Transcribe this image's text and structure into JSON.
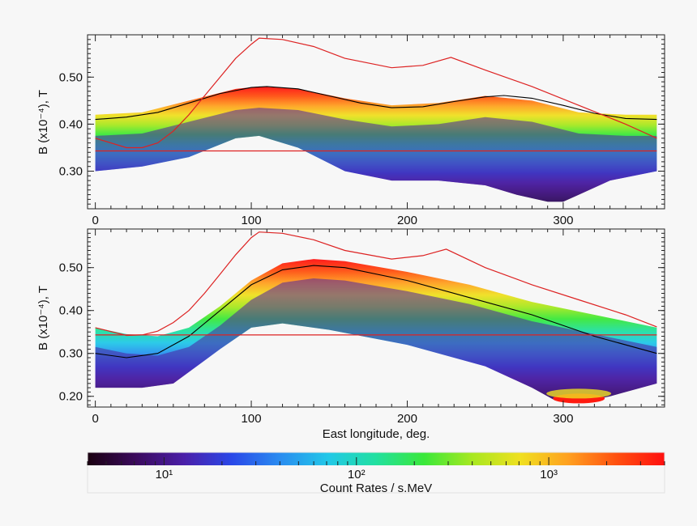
{
  "chart_data": [
    {
      "type": "heatmap",
      "panel": "top",
      "ylabel": "B (x10⁻⁴), T",
      "xlim": [
        -5,
        365
      ],
      "ylim": [
        0.22,
        0.59
      ],
      "xticks": [
        0,
        100,
        200,
        300
      ],
      "xtick_labels": [
        "0",
        "100",
        "200",
        "300"
      ],
      "yticks": [
        0.3,
        0.4,
        0.5
      ],
      "ytick_labels": [
        "0.30",
        "0.40",
        "0.50"
      ],
      "band_upper": {
        "x": [
          0,
          30,
          60,
          90,
          105,
          130,
          160,
          190,
          220,
          250,
          280,
          310,
          340,
          360
        ],
        "y": [
          0.42,
          0.425,
          0.45,
          0.475,
          0.48,
          0.475,
          0.455,
          0.44,
          0.445,
          0.46,
          0.45,
          0.425,
          0.42,
          0.42
        ]
      },
      "band_lower": {
        "x": [
          0,
          30,
          60,
          90,
          105,
          130,
          160,
          190,
          220,
          250,
          270,
          290,
          300,
          310,
          330,
          360
        ],
        "y": [
          0.3,
          0.31,
          0.33,
          0.37,
          0.375,
          0.35,
          0.3,
          0.28,
          0.28,
          0.27,
          0.25,
          0.235,
          0.235,
          0.25,
          0.28,
          0.3
        ]
      },
      "series": [
        {
          "name": "black-curve",
          "color": "#000000",
          "x": [
            0,
            20,
            40,
            60,
            80,
            100,
            110,
            130,
            150,
            170,
            190,
            210,
            230,
            250,
            262,
            280,
            300,
            320,
            340,
            360
          ],
          "y": [
            0.41,
            0.415,
            0.425,
            0.445,
            0.465,
            0.478,
            0.48,
            0.475,
            0.46,
            0.445,
            0.435,
            0.437,
            0.448,
            0.458,
            0.461,
            0.455,
            0.44,
            0.423,
            0.412,
            0.41
          ]
        },
        {
          "name": "red-upper-curve",
          "color": "#dd2222",
          "x": [
            0,
            20,
            30,
            40,
            50,
            60,
            70,
            80,
            90,
            100,
            105,
            120,
            140,
            160,
            190,
            210,
            228,
            250,
            280,
            310,
            340,
            360
          ],
          "y": [
            0.37,
            0.35,
            0.35,
            0.36,
            0.385,
            0.42,
            0.46,
            0.5,
            0.54,
            0.57,
            0.583,
            0.58,
            0.565,
            0.54,
            0.52,
            0.525,
            0.542,
            0.515,
            0.48,
            0.44,
            0.4,
            0.37
          ]
        },
        {
          "name": "red-flat-line",
          "color": "#dd2222",
          "x": [
            0,
            360
          ],
          "y": [
            0.343,
            0.343
          ]
        }
      ]
    },
    {
      "type": "heatmap",
      "panel": "bottom",
      "ylabel": "B (x10⁻⁴), T",
      "xlabel": "East longitude, deg.",
      "xlim": [
        -5,
        365
      ],
      "ylim": [
        0.175,
        0.59
      ],
      "xticks": [
        0,
        100,
        200,
        300
      ],
      "xtick_labels": [
        "0",
        "100",
        "200",
        "300"
      ],
      "yticks": [
        0.2,
        0.3,
        0.4,
        0.5
      ],
      "ytick_labels": [
        "0.20",
        "0.30",
        "0.40",
        "0.50"
      ],
      "band_upper": {
        "x": [
          0,
          20,
          40,
          60,
          80,
          100,
          120,
          140,
          160,
          200,
          240,
          280,
          320,
          360
        ],
        "y": [
          0.36,
          0.345,
          0.34,
          0.36,
          0.41,
          0.47,
          0.51,
          0.52,
          0.515,
          0.49,
          0.46,
          0.42,
          0.39,
          0.36
        ]
      },
      "band_lower": {
        "x": [
          0,
          30,
          50,
          80,
          100,
          120,
          150,
          200,
          250,
          280,
          295,
          310,
          330,
          360
        ],
        "y": [
          0.22,
          0.22,
          0.23,
          0.31,
          0.36,
          0.37,
          0.355,
          0.32,
          0.27,
          0.22,
          0.19,
          0.185,
          0.2,
          0.23
        ]
      },
      "hotspot": {
        "x": 310,
        "y": 0.195
      },
      "series": [
        {
          "name": "black-curve",
          "color": "#000000",
          "x": [
            0,
            20,
            40,
            60,
            80,
            100,
            120,
            140,
            160,
            200,
            240,
            280,
            320,
            360
          ],
          "y": [
            0.3,
            0.29,
            0.3,
            0.34,
            0.4,
            0.46,
            0.495,
            0.505,
            0.5,
            0.47,
            0.43,
            0.39,
            0.34,
            0.3
          ]
        },
        {
          "name": "red-upper-curve",
          "color": "#dd2222",
          "x": [
            0,
            20,
            30,
            40,
            50,
            60,
            70,
            80,
            90,
            100,
            105,
            120,
            140,
            160,
            190,
            210,
            225,
            250,
            280,
            310,
            340,
            360
          ],
          "y": [
            0.36,
            0.342,
            0.343,
            0.352,
            0.372,
            0.4,
            0.44,
            0.485,
            0.53,
            0.57,
            0.583,
            0.58,
            0.565,
            0.54,
            0.52,
            0.528,
            0.543,
            0.5,
            0.46,
            0.425,
            0.39,
            0.362
          ]
        },
        {
          "name": "red-flat-line",
          "color": "#dd2222",
          "x": [
            0,
            360
          ],
          "y": [
            0.343,
            0.343
          ]
        }
      ]
    }
  ],
  "colorbar": {
    "title": "Count Rates / s.MeV",
    "tick_labels": [
      "10¹",
      "10²",
      "10³"
    ],
    "tick_values": [
      10,
      100,
      1000
    ],
    "range": [
      4,
      4000
    ],
    "colors": [
      "#1a0010",
      "#3b0a5c",
      "#4b1fa8",
      "#2a48e8",
      "#2a8cf0",
      "#22c8e8",
      "#22e0a0",
      "#3ae83a",
      "#a8e820",
      "#f0e020",
      "#ffa020",
      "#ff5010",
      "#ff1010"
    ]
  },
  "colors": {
    "frame": "#222222",
    "background": "#f7f7f7"
  }
}
